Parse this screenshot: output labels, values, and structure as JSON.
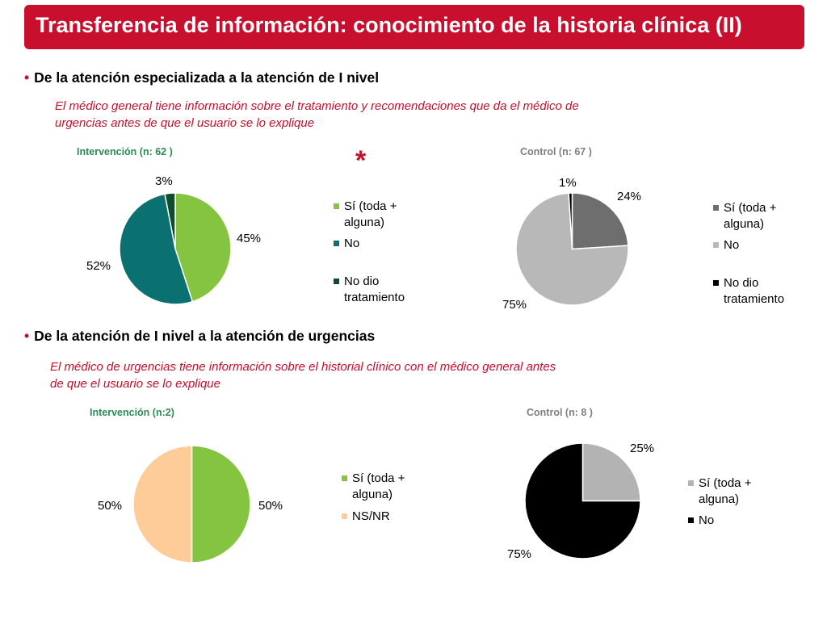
{
  "slide": {
    "title": "Transferencia de información: conocimiento de la historia clínica (II)",
    "bullet_marker": "•",
    "significance_marker": "*",
    "section1": {
      "heading": "De la atención especializada a la atención de I nivel",
      "description": "El médico general tiene información sobre el tratamiento y recomendaciones que da el médico de urgencias antes de que el usuario se lo explique"
    },
    "section2": {
      "heading": "De la atención de I nivel a la atención de urgencias",
      "description": "El  médico de urgencias tiene información sobre el historial clínico con el médico general antes de que el usuario se lo explique"
    }
  },
  "colors": {
    "title_bar": "#c8102e",
    "intervention_title": "#2e8b57",
    "control_title": "#7f7f7f"
  },
  "chart_data": [
    {
      "type": "pie",
      "title": "Intervención (n: 62 )",
      "categories": [
        "Sí (toda + alguna)",
        "No",
        "No dio tratamiento"
      ],
      "values": [
        45,
        52,
        3
      ],
      "labels": [
        "45%",
        "52%",
        "3%"
      ],
      "colors": [
        "#84c441",
        "#0b7170",
        "#0e4d2c"
      ],
      "legend": "right"
    },
    {
      "type": "pie",
      "title": "Control  (n: 67 )",
      "categories": [
        "Sí (toda + alguna)",
        "No",
        "No dio tratamiento"
      ],
      "values": [
        24,
        75,
        1
      ],
      "labels": [
        "24%",
        "75%",
        "1%"
      ],
      "colors": [
        "#6e6e6e",
        "#b8b8b8",
        "#000000"
      ],
      "legend": "right"
    },
    {
      "type": "pie",
      "title": "Intervención (n:2)",
      "categories": [
        "Sí (toda + alguna)",
        "NS/NR"
      ],
      "values": [
        50,
        50
      ],
      "labels": [
        "50%",
        "50%"
      ],
      "colors": [
        "#84c441",
        "#fecc99"
      ],
      "legend": "right"
    },
    {
      "type": "pie",
      "title": "Control  (n: 8 )",
      "categories": [
        "Sí (toda + alguna)",
        "No"
      ],
      "values": [
        25,
        75
      ],
      "labels": [
        "25%",
        "75%"
      ],
      "colors": [
        "#b3b3b3",
        "#000000"
      ],
      "legend": "right"
    }
  ]
}
